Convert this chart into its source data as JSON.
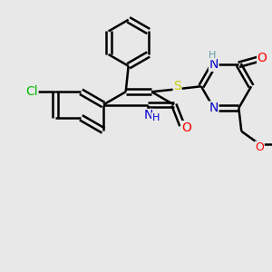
{
  "bg_color": "#e8e8e8",
  "atom_colors": {
    "C": "#000000",
    "N": "#0000cd",
    "O": "#ff0000",
    "S": "#cccc00",
    "Cl": "#00bb00",
    "NH_teal": "#5f9ea0",
    "NH_blue": "#0000cd"
  },
  "bond_color": "#000000",
  "bond_width": 1.8,
  "font_size": 10,
  "scale": 1.0
}
